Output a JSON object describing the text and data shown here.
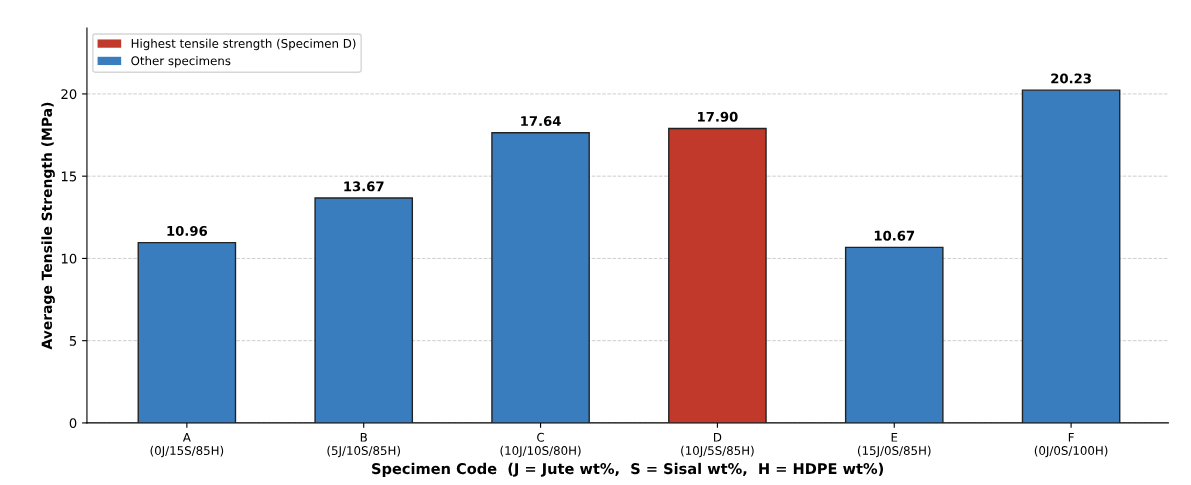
{
  "chart_data": {
    "type": "bar",
    "categories": [
      "A\n(0J/15S/85H)",
      "B\n(5J/10S/85H)",
      "C\n(10J/10S/80H)",
      "D\n(10J/5S/85H)",
      "E\n(15J/0S/85H)",
      "F\n(0J/0S/100H)"
    ],
    "series": [
      {
        "name": "Highest tensile strength (Specimen D)",
        "color": "#c0392b",
        "values": [
          null,
          null,
          null,
          17.9,
          null,
          null
        ]
      },
      {
        "name": "Other specimens",
        "color": "#3a7dbf",
        "values": [
          10.96,
          13.67,
          17.64,
          null,
          10.67,
          20.23
        ]
      }
    ],
    "value_labels": [
      "10.96",
      "13.67",
      "17.64",
      "17.90",
      "10.67",
      "20.23"
    ],
    "xlabel": "Specimen Code  (J = Jute wt%,  S = Sisal wt%,  H = HDPE wt%)",
    "ylabel": "Average Tensile Strength (MPa)",
    "ylim": [
      0,
      24
    ],
    "yticks": [
      0,
      5,
      10,
      15,
      20
    ],
    "grid": "y",
    "legend": "top left"
  }
}
